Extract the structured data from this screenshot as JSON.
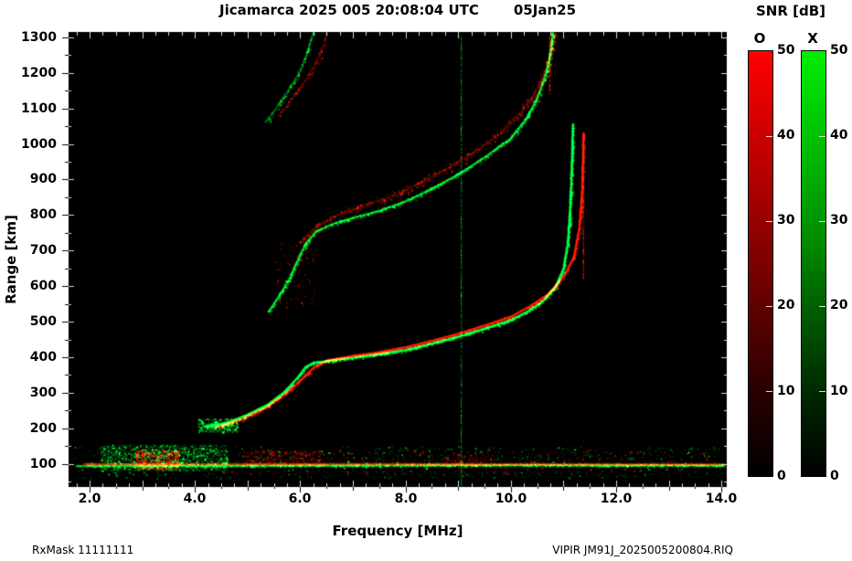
{
  "title": {
    "left": "Jicamarca 2025 005 20:08:04 UTC",
    "right": "05Jan25"
  },
  "footer": {
    "left": "RxMask 11111111",
    "right": "VIPIR  JM91J_2025005200804.RIQ"
  },
  "axes": {
    "x": {
      "label": "Frequency [MHz]",
      "tick_labels": [
        "2.0",
        "4.0",
        "6.0",
        "8.0",
        "10.0",
        "12.0",
        "14.0"
      ]
    },
    "y": {
      "label": "Range [km]",
      "tick_labels": [
        "1300",
        "1200",
        "1100",
        "1000",
        "900",
        "800",
        "700",
        "600",
        "500",
        "400",
        "300",
        "200",
        "100"
      ]
    }
  },
  "colorbars": {
    "title": "SNR [dB]",
    "o_label": "O",
    "x_label": "X",
    "tick_labels": [
      "50",
      "40",
      "30",
      "20",
      "10",
      "0"
    ]
  },
  "chart_data": {
    "type": "scatter",
    "kind": "ionogram",
    "title": "Jicamarca 2025 005 20:08:04 UTC 05Jan25",
    "xlabel": "Frequency [MHz]",
    "ylabel": "Range [km]",
    "xlim": [
      1.6,
      14.1
    ],
    "ylim": [
      35,
      1315
    ],
    "grid": false,
    "background": "#000000",
    "mode_colors": {
      "O": "#ff1400",
      "X": "#00ff30"
    },
    "snr_scale": {
      "label": "SNR [dB]",
      "min": 0,
      "max": 50
    },
    "traces": [
      {
        "name": "F-layer-1st-hop-X",
        "mode": "X",
        "core": 0.95,
        "thickness": 3,
        "speckle": 2.2,
        "points": [
          [
            4.2,
            205
          ],
          [
            4.6,
            215
          ],
          [
            5.0,
            238
          ],
          [
            5.4,
            268
          ],
          [
            5.7,
            302
          ],
          [
            5.95,
            342
          ],
          [
            6.1,
            372
          ],
          [
            6.25,
            384
          ],
          [
            6.6,
            391
          ],
          [
            7.0,
            398
          ],
          [
            7.5,
            408
          ],
          [
            8.0,
            420
          ],
          [
            8.5,
            438
          ],
          [
            9.0,
            458
          ],
          [
            9.5,
            480
          ],
          [
            10.0,
            504
          ],
          [
            10.3,
            527
          ],
          [
            10.6,
            556
          ],
          [
            10.85,
            598
          ],
          [
            11.0,
            648
          ],
          [
            11.08,
            718
          ],
          [
            11.12,
            800
          ],
          [
            11.15,
            900
          ],
          [
            11.17,
            1000
          ],
          [
            11.18,
            1055
          ]
        ]
      },
      {
        "name": "F-layer-1st-hop-O",
        "mode": "O",
        "core": 0.8,
        "thickness": 3.5,
        "speckle": 2.0,
        "points": [
          [
            4.4,
            202
          ],
          [
            4.9,
            226
          ],
          [
            5.35,
            258
          ],
          [
            5.7,
            294
          ],
          [
            6.0,
            334
          ],
          [
            6.25,
            370
          ],
          [
            6.5,
            390
          ],
          [
            7.0,
            404
          ],
          [
            7.5,
            414
          ],
          [
            8.0,
            428
          ],
          [
            8.5,
            446
          ],
          [
            9.0,
            466
          ],
          [
            9.5,
            489
          ],
          [
            10.0,
            514
          ],
          [
            10.35,
            542
          ],
          [
            10.7,
            576
          ],
          [
            11.0,
            626
          ],
          [
            11.2,
            682
          ],
          [
            11.3,
            762
          ],
          [
            11.35,
            860
          ],
          [
            11.37,
            950
          ],
          [
            11.38,
            1030
          ]
        ]
      },
      {
        "name": "F-layer-2nd-hop-X",
        "mode": "X",
        "core": 0.55,
        "thickness": 4,
        "speckle": 2.2,
        "points": [
          [
            5.4,
            528
          ],
          [
            5.6,
            572
          ],
          [
            5.8,
            622
          ],
          [
            5.95,
            672
          ],
          [
            6.1,
            718
          ],
          [
            6.3,
            753
          ],
          [
            6.6,
            774
          ],
          [
            7.0,
            792
          ],
          [
            7.5,
            812
          ],
          [
            8.0,
            838
          ],
          [
            8.5,
            874
          ],
          [
            9.0,
            914
          ],
          [
            9.5,
            962
          ],
          [
            10.0,
            1016
          ],
          [
            10.3,
            1072
          ],
          [
            10.5,
            1128
          ],
          [
            10.65,
            1188
          ],
          [
            10.75,
            1252
          ],
          [
            10.8,
            1312
          ]
        ]
      },
      {
        "name": "F-layer-2nd-hop-O",
        "mode": "O",
        "core": 0.18,
        "thickness": 8,
        "speckle": 1.6,
        "points": [
          [
            6.0,
            722
          ],
          [
            6.35,
            772
          ],
          [
            6.75,
            802
          ],
          [
            7.2,
            826
          ],
          [
            7.8,
            856
          ],
          [
            8.3,
            892
          ],
          [
            8.8,
            932
          ],
          [
            9.3,
            976
          ],
          [
            9.8,
            1030
          ],
          [
            10.2,
            1090
          ],
          [
            10.5,
            1152
          ],
          [
            10.7,
            1218
          ],
          [
            10.8,
            1285
          ],
          [
            10.84,
            1312
          ]
        ]
      },
      {
        "name": "F-layer-3rd-hop-X",
        "mode": "X",
        "core": 0.25,
        "thickness": 4,
        "speckle": 1.2,
        "points": [
          [
            5.35,
            1062
          ],
          [
            5.55,
            1102
          ],
          [
            5.75,
            1145
          ],
          [
            5.95,
            1192
          ],
          [
            6.1,
            1240
          ],
          [
            6.2,
            1290
          ],
          [
            6.25,
            1312
          ]
        ]
      },
      {
        "name": "F-layer-3rd-hop-O",
        "mode": "O",
        "core": 0.15,
        "thickness": 5,
        "speckle": 1.0,
        "points": [
          [
            5.6,
            1080
          ],
          [
            5.85,
            1128
          ],
          [
            6.1,
            1178
          ],
          [
            6.3,
            1228
          ],
          [
            6.45,
            1280
          ],
          [
            6.5,
            1312
          ]
        ]
      },
      {
        "name": "E-region-line-X",
        "mode": "X",
        "core": 0.55,
        "thickness": 2,
        "speckle": 1.2,
        "points": [
          [
            1.75,
            94
          ],
          [
            6.0,
            95
          ],
          [
            10.0,
            96
          ],
          [
            14.05,
            95
          ]
        ]
      },
      {
        "name": "E-region-line-O",
        "mode": "O",
        "core": 0.45,
        "thickness": 2,
        "speckle": 1.2,
        "points": [
          [
            1.9,
            100
          ],
          [
            7.0,
            100
          ],
          [
            14.05,
            99
          ]
        ]
      }
    ],
    "vertical_lines": [
      {
        "name": "interference-line-9MHz",
        "mode": "X",
        "freq": 9.05,
        "range": [
          40,
          1310
        ],
        "intensity": 0.3
      },
      {
        "name": "O-mode-asymptote-spur",
        "mode": "O",
        "freq": 11.37,
        "range": [
          620,
          1030
        ],
        "intensity": 0.55
      },
      {
        "name": "O-mode-top-spur",
        "mode": "O",
        "freq": 10.73,
        "range": [
          1140,
          1305
        ],
        "intensity": 0.5
      }
    ],
    "blobs": [
      {
        "name": "E-scatter-green",
        "mode": "X",
        "freq": [
          2.2,
          4.6
        ],
        "range": [
          82,
          155
        ],
        "count": 1500
      },
      {
        "name": "E-scatter-red",
        "mode": "O",
        "freq": [
          2.85,
          3.7
        ],
        "range": [
          85,
          140
        ],
        "count": 700
      },
      {
        "name": "E-scatter-red-mid",
        "mode": "O",
        "freq": [
          4.9,
          6.45
        ],
        "range": [
          95,
          140
        ],
        "count": 350
      },
      {
        "name": "trace-foot-green",
        "mode": "X",
        "freq": [
          4.05,
          4.8
        ],
        "range": [
          190,
          228
        ],
        "count": 420
      },
      {
        "name": "E-scatter-red-9MHz",
        "mode": "O",
        "freq": [
          8.7,
          9.7
        ],
        "range": [
          92,
          128
        ],
        "count": 140
      },
      {
        "name": "second-hop-red-haze",
        "mode": "O",
        "freq": [
          5.5,
          6.3
        ],
        "range": [
          540,
          720
        ],
        "count": 150
      },
      {
        "name": "bottom-speckle-green",
        "mode": "X",
        "freq": [
          1.7,
          14.0
        ],
        "range": [
          60,
          150
        ],
        "count": 900
      },
      {
        "name": "bottom-speckle-red",
        "mode": "O",
        "freq": [
          4.5,
          13.9
        ],
        "range": [
          70,
          140
        ],
        "count": 500
      }
    ],
    "noise": {
      "count": 2600,
      "alpha": 0.1
    }
  }
}
